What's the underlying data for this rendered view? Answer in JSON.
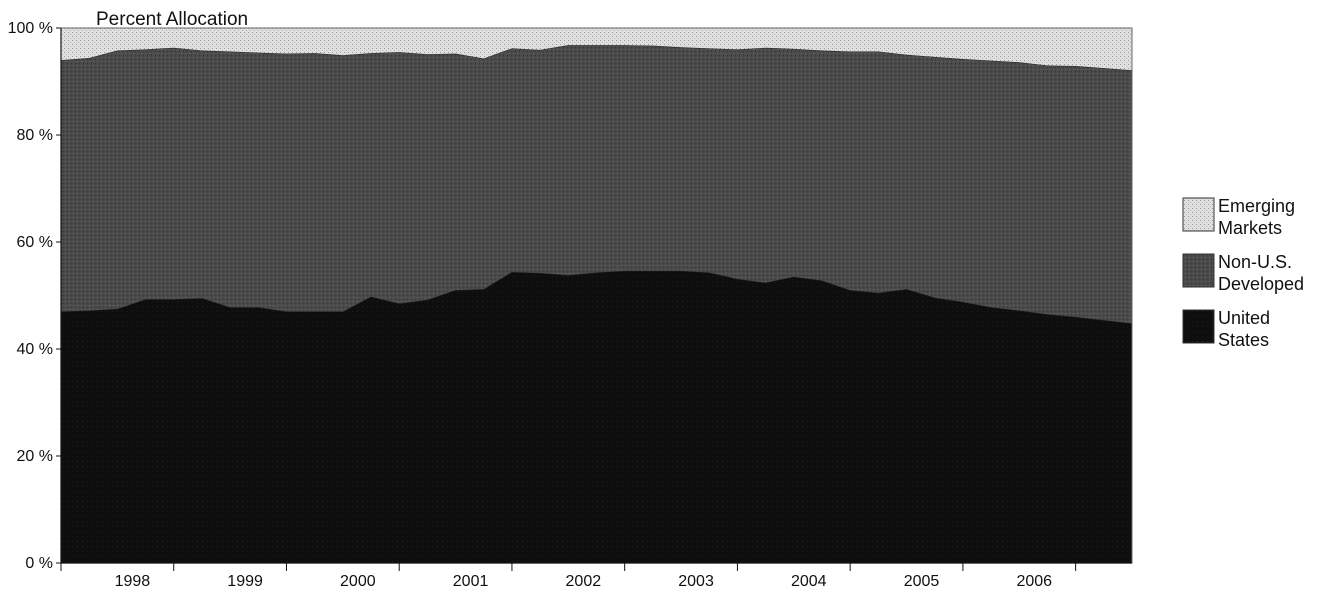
{
  "chart_data": {
    "type": "area",
    "stacked": true,
    "title": "Percent Allocation",
    "xlabel": "",
    "ylabel": "",
    "ylim": [
      0,
      100
    ],
    "y_ticks": [
      "0 %",
      "20 %",
      "40 %",
      "60 %",
      "80 %",
      "100 %"
    ],
    "x_tick_labels": [
      "1998",
      "1999",
      "2000",
      "2001",
      "2002",
      "2003",
      "2004",
      "2005",
      "2006"
    ],
    "legend_position": "right",
    "grid": false,
    "x": [
      0,
      0.5,
      1,
      1.5,
      2,
      2.5,
      3,
      3.5,
      4,
      4.5,
      5,
      5.5,
      6,
      6.5,
      7,
      7.5,
      8,
      8.5,
      9,
      9.5,
      10,
      10.5,
      11,
      11.5,
      12,
      12.5,
      13,
      13.5,
      14,
      14.5,
      15,
      15.5,
      16,
      16.5,
      17,
      17.5,
      18,
      18.5,
      19
    ],
    "series": [
      {
        "name": "United States",
        "color": "#0d0d0d",
        "values": [
          47,
          47.2,
          47.5,
          49.3,
          49.3,
          49.5,
          47.8,
          47.8,
          47,
          47,
          47,
          49.8,
          48.5,
          49.2,
          51,
          51.2,
          54.4,
          54.2,
          53.8,
          54.3,
          54.6,
          54.6,
          54.6,
          54.3,
          53.1,
          52.4,
          53.5,
          52.8,
          51,
          50.5,
          51.2,
          49.6,
          48.8,
          47.8,
          47.2,
          46.5,
          46,
          45.4,
          44.8
        ]
      },
      {
        "name": "Non-U.S. Developed",
        "color": "#474747",
        "values": [
          47,
          47.2,
          48.3,
          46.7,
          47,
          46.3,
          47.8,
          47.6,
          48.2,
          48.3,
          47.9,
          45.5,
          47,
          45.9,
          44.2,
          43.1,
          41.8,
          41.7,
          43,
          42.5,
          42.2,
          42.1,
          41.8,
          41.9,
          42.9,
          43.9,
          42.6,
          43,
          44.6,
          45.1,
          43.8,
          45,
          45.4,
          46.1,
          46.4,
          46.5,
          46.9,
          47.1,
          47.3
        ]
      },
      {
        "name": "Emerging Markets",
        "color": "#dcdcdc",
        "values": [
          6,
          5.6,
          4.2,
          4,
          3.7,
          4.2,
          4.4,
          4.6,
          4.8,
          4.7,
          5.1,
          4.7,
          4.5,
          4.9,
          4.8,
          5.7,
          3.8,
          4.1,
          3.2,
          3.2,
          3.2,
          3.3,
          3.6,
          3.8,
          4,
          3.7,
          3.9,
          4.2,
          4.4,
          4.4,
          5,
          5.4,
          5.8,
          6.1,
          6.4,
          7,
          7.1,
          7.5,
          7.9
        ]
      }
    ],
    "legend": [
      {
        "name": "Emerging Markets",
        "lines": [
          "Emerging",
          "Markets"
        ],
        "color": "#dcdcdc"
      },
      {
        "name": "Non-U.S. Developed",
        "lines": [
          "Non-U.S.",
          "Developed"
        ],
        "color": "#474747"
      },
      {
        "name": "United States",
        "lines": [
          "United",
          "States"
        ],
        "color": "#0d0d0d"
      }
    ]
  }
}
